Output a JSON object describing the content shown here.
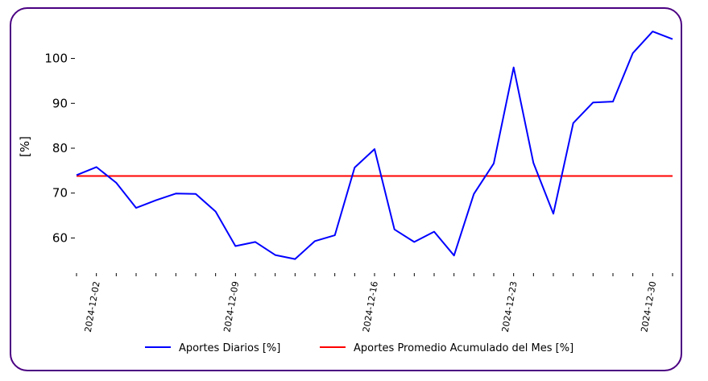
{
  "chart_data": {
    "type": "line",
    "ylabel": "[%]",
    "xlabel": "",
    "ylim": [
      52,
      108
    ],
    "yticks": [
      60,
      70,
      80,
      90,
      100
    ],
    "x": [
      "2024-12-01",
      "2024-12-02",
      "2024-12-03",
      "2024-12-04",
      "2024-12-05",
      "2024-12-06",
      "2024-12-07",
      "2024-12-08",
      "2024-12-09",
      "2024-12-10",
      "2024-12-11",
      "2024-12-12",
      "2024-12-13",
      "2024-12-14",
      "2024-12-15",
      "2024-12-16",
      "2024-12-17",
      "2024-12-18",
      "2024-12-19",
      "2024-12-20",
      "2024-12-21",
      "2024-12-22",
      "2024-12-23",
      "2024-12-24",
      "2024-12-25",
      "2024-12-26",
      "2024-12-27",
      "2024-12-28",
      "2024-12-29",
      "2024-12-30",
      "2024-12-31"
    ],
    "xtick_labels": [
      "2024-12-02",
      "2024-12-09",
      "2024-12-16",
      "2024-12-23",
      "2024-12-30"
    ],
    "series": [
      {
        "name": "Aportes Diarios [%]",
        "color": "#0000ff",
        "values": [
          74.0,
          75.8,
          72.3,
          66.7,
          68.4,
          69.9,
          69.8,
          65.9,
          58.2,
          59.1,
          56.2,
          55.3,
          59.3,
          60.6,
          75.7,
          79.8,
          61.9,
          59.1,
          61.4,
          56.1,
          69.8,
          76.6,
          98.0,
          76.7,
          65.4,
          85.6,
          90.2,
          90.4,
          101.2,
          106.0,
          104.3
        ]
      },
      {
        "name": "Aportes Promedio Acumulado del Mes [%]",
        "color": "#ff0000",
        "values": [
          73.8,
          73.8,
          73.8,
          73.8,
          73.8,
          73.8,
          73.8,
          73.8,
          73.8,
          73.8,
          73.8,
          73.8,
          73.8,
          73.8,
          73.8,
          73.8,
          73.8,
          73.8,
          73.8,
          73.8,
          73.8,
          73.8,
          73.8,
          73.8,
          73.8,
          73.8,
          73.8,
          73.8,
          73.8,
          73.8,
          73.8
        ]
      }
    ],
    "grid": false,
    "legend": "bottom-center"
  }
}
